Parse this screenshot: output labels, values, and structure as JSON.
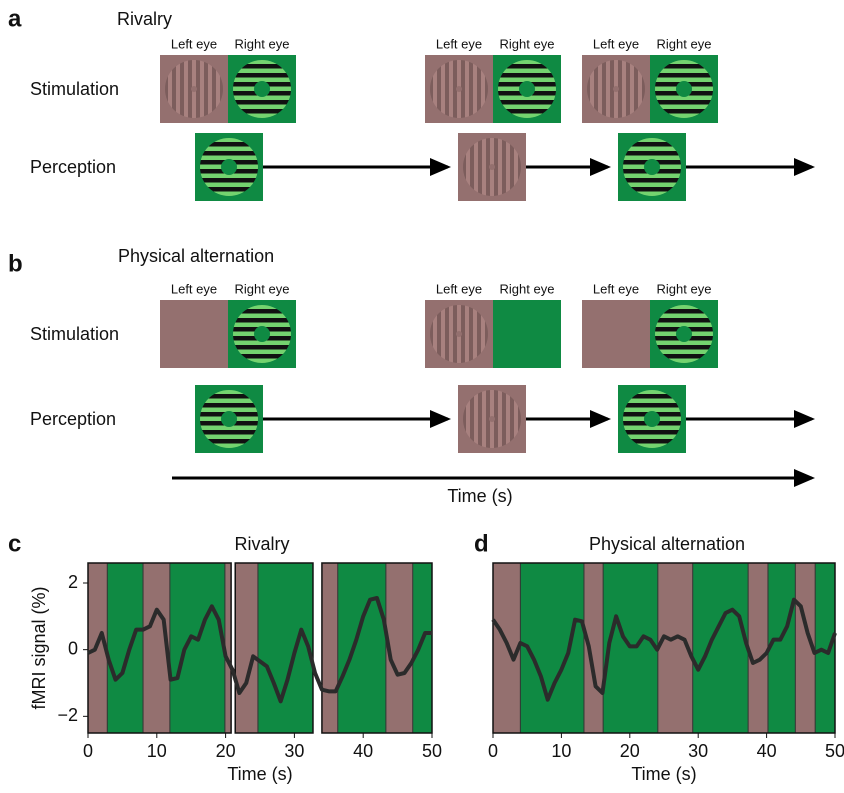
{
  "panel_a": {
    "letter": "a",
    "title": "Rivalry",
    "row_labels": [
      "Stimulation",
      "Perception"
    ],
    "eye_labels": [
      [
        "Left eye",
        "Right eye"
      ],
      [
        "Left eye",
        "Right eye"
      ],
      [
        "Left eye",
        "Right eye"
      ]
    ]
  },
  "panel_b": {
    "letter": "b",
    "title": "Physical alternation",
    "row_labels": [
      "Stimulation",
      "Perception"
    ],
    "eye_labels": [
      [
        "Left eye",
        "Right eye"
      ],
      [
        "Left eye",
        "Right eye"
      ],
      [
        "Left eye",
        "Right eye"
      ]
    ]
  },
  "time_axis_label": "Time (s)",
  "chart_data": [
    {
      "type": "line",
      "letter": "c",
      "title": "Rivalry",
      "x_label": "Time (s)",
      "y_label": "fMRI signal (%)",
      "x": [
        0,
        1,
        2,
        3,
        4,
        5,
        6,
        7,
        8,
        9,
        10,
        11,
        12,
        13,
        14,
        15,
        16,
        17,
        18,
        19,
        20,
        21,
        22,
        23,
        24,
        25,
        26,
        27,
        28,
        29,
        30,
        31,
        32,
        33,
        34,
        35,
        36,
        37,
        38,
        39,
        40,
        41,
        42,
        43,
        44,
        45,
        46,
        47,
        48,
        49,
        50
      ],
      "series": [
        {
          "color": "#2b2b2b",
          "values": [
            -0.1,
            0,
            0.5,
            -0.3,
            -0.9,
            -0.7,
            0,
            0.6,
            0.6,
            0.7,
            1.2,
            0.9,
            -0.9,
            -0.85,
            0,
            0.4,
            0.3,
            0.9,
            1.3,
            0.9,
            -0.2,
            -0.6,
            -1.3,
            -1.0,
            -0.2,
            -0.35,
            -0.5,
            -1.0,
            -1.55,
            -0.9,
            -0.1,
            0.6,
            0.1,
            -0.7,
            -1.2,
            -1.25,
            -1.25,
            -0.8,
            -0.3,
            0.3,
            1.0,
            1.5,
            1.55,
            0.9,
            -0.3,
            -0.75,
            -0.7,
            -0.4,
            0,
            0.5,
            0.5
          ]
        }
      ],
      "xlim": [
        0,
        50
      ],
      "ylim": [
        -2.5,
        2.6
      ],
      "xticks": [
        0,
        10,
        20,
        30,
        40,
        50
      ],
      "yticks": [
        {
          "value": -2,
          "label": "−2"
        },
        0,
        2
      ],
      "intervals": [
        {
          "x0": 0,
          "x1": 2.8,
          "color": "#94706f"
        },
        {
          "x0": 2.8,
          "x1": 8,
          "color": "#0f8a43"
        },
        {
          "x0": 8,
          "x1": 11.9,
          "color": "#94706f"
        },
        {
          "x0": 11.9,
          "x1": 19.9,
          "color": "#0f8a43"
        },
        {
          "x0": 19.9,
          "x1": 20.8,
          "color": "#94706f"
        },
        {
          "x0": 21.4,
          "x1": 24.7,
          "color": "#94706f"
        },
        {
          "x0": 24.7,
          "x1": 32.7,
          "color": "#0f8a43"
        },
        {
          "x0": 34,
          "x1": 36.3,
          "color": "#94706f"
        },
        {
          "x0": 36.3,
          "x1": 43.3,
          "color": "#0f8a43"
        },
        {
          "x0": 43.3,
          "x1": 47.2,
          "color": "#94706f"
        },
        {
          "x0": 47.2,
          "x1": 50,
          "color": "#0f8a43"
        }
      ]
    },
    {
      "type": "line",
      "letter": "d",
      "title": "Physical alternation",
      "x_label": "Time (s)",
      "x": [
        0,
        1,
        2,
        3,
        4,
        5,
        6,
        7,
        8,
        9,
        10,
        11,
        12,
        13,
        14,
        15,
        16,
        17,
        18,
        19,
        20,
        21,
        22,
        23,
        24,
        25,
        26,
        27,
        28,
        29,
        30,
        31,
        32,
        33,
        34,
        35,
        36,
        37,
        38,
        39,
        40,
        41,
        42,
        43,
        44,
        45,
        46,
        47,
        48,
        49,
        50
      ],
      "series": [
        {
          "color": "#2b2b2b",
          "values": [
            0.9,
            0.6,
            0.2,
            -0.3,
            0.2,
            0.1,
            -0.3,
            -0.8,
            -1.5,
            -1.0,
            -0.6,
            -0.1,
            0.9,
            0.85,
            0.1,
            -1.1,
            -1.3,
            0.2,
            1.0,
            0.4,
            0.1,
            0.1,
            0.4,
            0.3,
            0,
            0.4,
            0.3,
            0.4,
            0.3,
            -0.2,
            -0.6,
            -0.2,
            0.3,
            0.7,
            1.1,
            1.2,
            1.0,
            0.2,
            -0.4,
            -0.3,
            -0.1,
            0.3,
            0.3,
            0.7,
            1.5,
            1.3,
            0.5,
            -0.1,
            0,
            -0.1,
            0.5
          ]
        }
      ],
      "xlim": [
        0,
        50
      ],
      "ylim": [
        -2.5,
        2.6
      ],
      "xticks": [
        0,
        10,
        20,
        30,
        40,
        50
      ],
      "intervals": [
        {
          "x0": 0,
          "x1": 4,
          "color": "#94706f"
        },
        {
          "x0": 4,
          "x1": 13.3,
          "color": "#0f8a43"
        },
        {
          "x0": 13.3,
          "x1": 16.1,
          "color": "#94706f"
        },
        {
          "x0": 16.1,
          "x1": 24.1,
          "color": "#0f8a43"
        },
        {
          "x0": 24.1,
          "x1": 29.2,
          "color": "#94706f"
        },
        {
          "x0": 29.2,
          "x1": 37.3,
          "color": "#0f8a43"
        },
        {
          "x0": 37.3,
          "x1": 40.2,
          "color": "#94706f"
        },
        {
          "x0": 40.2,
          "x1": 44.2,
          "color": "#0f8a43"
        },
        {
          "x0": 44.2,
          "x1": 47.1,
          "color": "#94706f"
        },
        {
          "x0": 47.1,
          "x1": 50,
          "color": "#0f8a43"
        }
      ]
    }
  ]
}
